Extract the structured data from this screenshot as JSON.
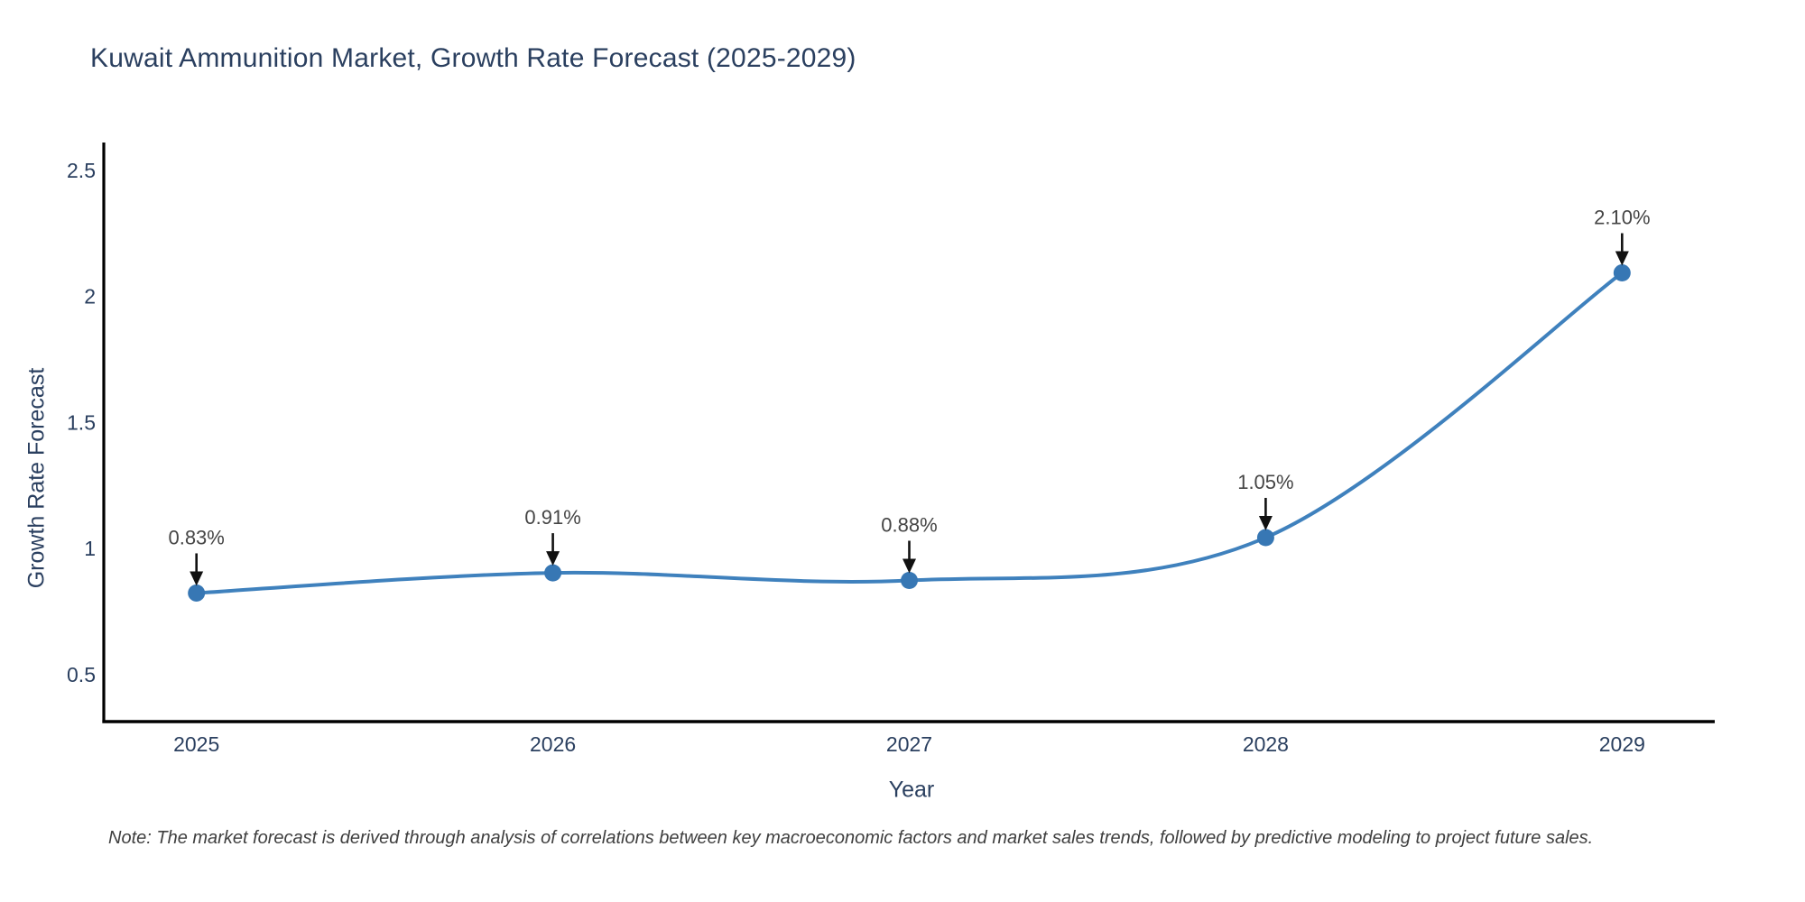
{
  "header": {
    "title": "Kuwait Ammunition Market, Growth Rate Forecast (2025-2029)"
  },
  "footer": {
    "note": "Note: The market forecast is derived through analysis of correlations between key macroeconomic factors and market sales trends, followed by predictive modeling to project future sales."
  },
  "chart_data": {
    "type": "line",
    "title": "Kuwait Ammunition Market, Growth Rate Forecast (2025-2029)",
    "xlabel": "Year",
    "ylabel": "Growth Rate Forecast",
    "x": [
      2025,
      2026,
      2027,
      2028,
      2029
    ],
    "values": [
      0.83,
      0.91,
      0.88,
      1.05,
      2.1
    ],
    "point_labels": [
      "0.83%",
      "0.91%",
      "0.88%",
      "1.05%",
      "2.10%"
    ],
    "xtick_labels": [
      "2025",
      "2026",
      "2027",
      "2028",
      "2029"
    ],
    "yticks": [
      0.5,
      1,
      1.5,
      2,
      2.5
    ],
    "ytick_labels": [
      "0.5",
      "1",
      "1.5",
      "2",
      "2.5"
    ],
    "xlim_years": [
      2024.74,
      2029.26
    ],
    "ylim": [
      0.32,
      2.61
    ],
    "grid": false,
    "legend": "none",
    "line_shape": "spline",
    "marker": "circle",
    "annotation_style": "down-arrow",
    "colors": {
      "line": "#3f81bd",
      "marker": "#3777b4",
      "axis": "#000000",
      "title": "#2a3f5f",
      "tick": "#2a3f5f",
      "axis_title": "#2a3f5f",
      "annotation": "#454545",
      "arrow": "#111111",
      "background": "#ffffff"
    }
  }
}
